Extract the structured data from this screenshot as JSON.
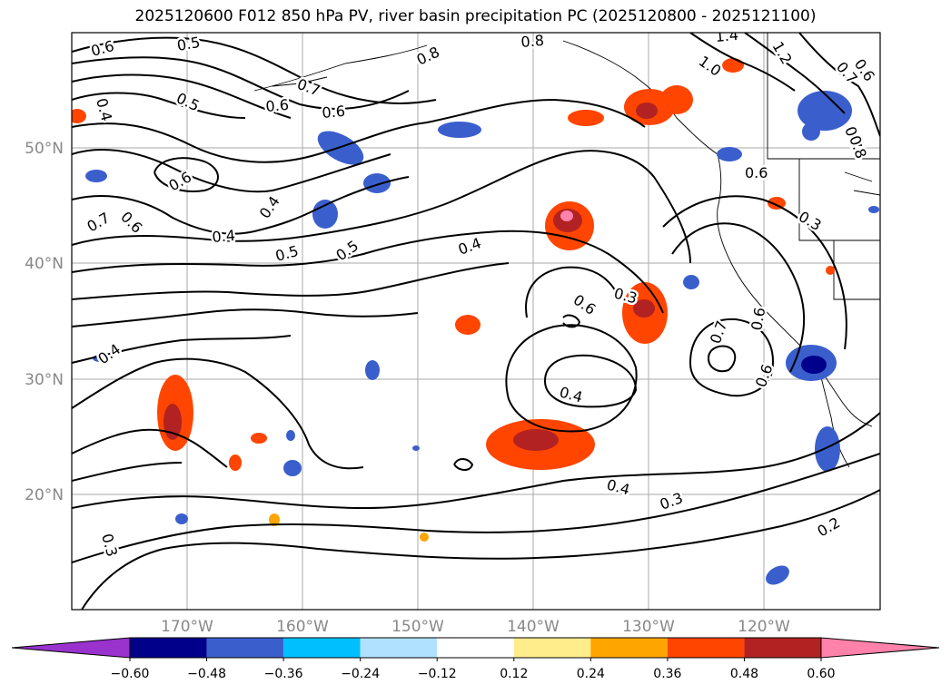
{
  "title": "2025120600 F012 850 hPa PV, river basin precipitation PC (2025120800 - 2025121100)",
  "lat_labels": [
    "50°N",
    "40°N",
    "30°N",
    "20°N"
  ],
  "lon_labels": [
    "170°W",
    "160°W",
    "150°W",
    "140°W",
    "130°W",
    "120°W"
  ],
  "contour_labels": [
    "0.6",
    "0.5",
    "0.8",
    "1.4",
    "1.2",
    "0.7",
    "0.6",
    "1.0",
    "0.8",
    "0.7",
    "0.6",
    "0.4",
    "0.5",
    "0.7",
    "0.6",
    "0.8",
    "0.6",
    "0.6",
    "0.4",
    "0.4",
    "0.7",
    "0.6",
    "0.5",
    "0.5",
    "0.4",
    "0.3",
    "0.6",
    "0.3",
    "0.7",
    "0.6",
    "0.6",
    "0.4",
    "0.4",
    "0.4",
    "0.3",
    "0.2",
    "0.3"
  ],
  "colorbar": {
    "ticks": [
      "−0.60",
      "−0.48",
      "−0.36",
      "−0.24",
      "−0.12",
      "0.12",
      "0.24",
      "0.36",
      "0.48",
      "0.60"
    ],
    "colors": [
      "#9a32cd",
      "#00008b",
      "#3a5fcd",
      "#00bfff",
      "#b0e2ff",
      "#ffffff",
      "#ffec8b",
      "#ffa500",
      "#ff4500",
      "#b22222",
      "#ff82ab"
    ]
  }
}
